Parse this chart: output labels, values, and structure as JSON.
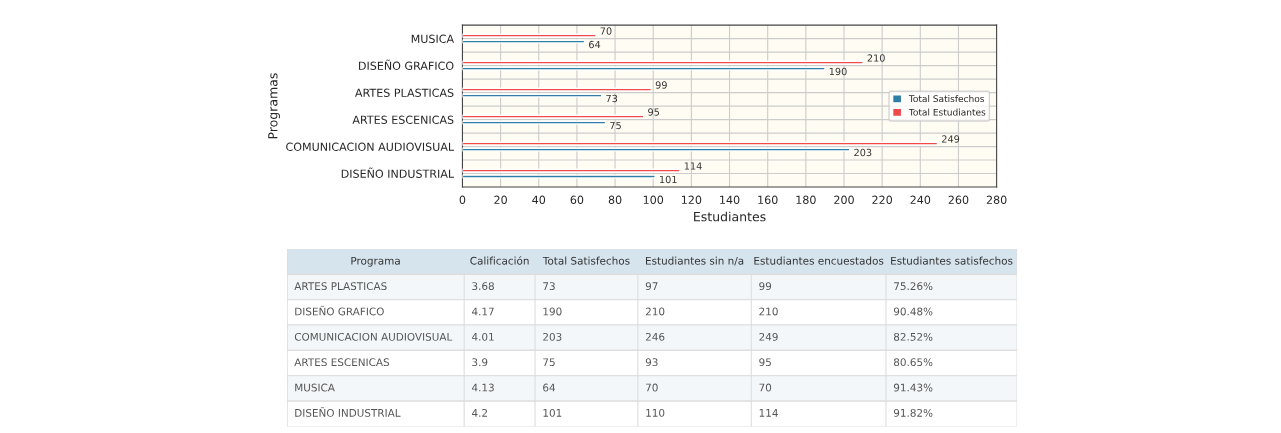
{
  "chart_data": [
    {
      "type": "bar",
      "orientation": "horizontal",
      "xlabel": "Estudiantes",
      "ylabel": "Programas",
      "categories": [
        "MUSICA",
        "DISEÑO GRAFICO",
        "ARTES PLASTICAS",
        "ARTES ESCENICAS",
        "COMUNICACION AUDIOVISUAL",
        "DISEÑO INDUSTRIAL"
      ],
      "series": [
        {
          "name": "Total Satisfechos",
          "color": "#2f7ea6",
          "values": [
            64,
            190,
            73,
            75,
            203,
            101
          ]
        },
        {
          "name": "Total Estudiantes",
          "color": "#f04a4a",
          "values": [
            70,
            210,
            99,
            95,
            249,
            114
          ]
        }
      ],
      "xlim": [
        0,
        280
      ],
      "xticks": [
        0,
        20,
        40,
        60,
        80,
        100,
        120,
        140,
        160,
        180,
        200,
        220,
        240,
        260,
        280
      ],
      "grid": true,
      "legend": "right",
      "data_labels": true
    },
    {
      "type": "other",
      "categories": [
        "Programa",
        "Calificación",
        "Total Satisfechos",
        "Estudiantes sin n/a",
        "Estudiantes encuestados",
        "Estudiantes satisfechos"
      ],
      "cell_labels": [
        [
          "ARTES PLASTICAS",
          "3.68",
          "73",
          "97",
          "99",
          "75.26%"
        ],
        [
          "DISEÑO GRAFICO",
          "4.17",
          "190",
          "210",
          "210",
          "90.48%"
        ],
        [
          "COMUNICACION AUDIOVISUAL",
          "4.01",
          "203",
          "246",
          "249",
          "82.52%"
        ],
        [
          "ARTES ESCENICAS",
          "3.9",
          "75",
          "93",
          "95",
          "80.65%"
        ],
        [
          "MUSICA",
          "4.13",
          "64",
          "70",
          "70",
          "91.43%"
        ],
        [
          "DISEÑO INDUSTRIAL",
          "4.2",
          "101",
          "110",
          "114",
          "91.82%"
        ]
      ]
    }
  ]
}
